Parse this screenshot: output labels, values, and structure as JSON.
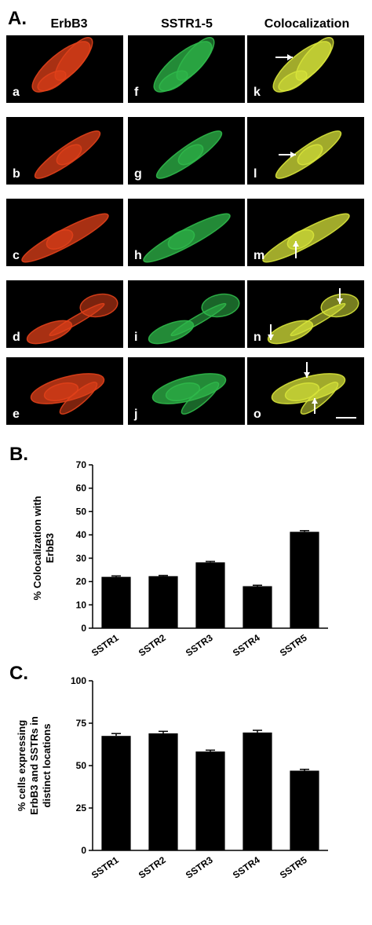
{
  "panel_labels": {
    "a": "A.",
    "b": "B.",
    "c": "C."
  },
  "columns": [
    "ErbB3",
    "SSTR1-5",
    "Colocalization"
  ],
  "micrographs": [
    [
      "a",
      "f",
      "k"
    ],
    [
      "b",
      "g",
      "l"
    ],
    [
      "c",
      "h",
      "m"
    ],
    [
      "d",
      "i",
      "n"
    ],
    [
      "e",
      "j",
      "o"
    ]
  ],
  "colors": {
    "red": "#e0401a",
    "green": "#2fb84a",
    "yellow": "#d7e33a",
    "bar": "#000000"
  },
  "chart_data": [
    {
      "type": "bar",
      "categories": [
        "SSTR1",
        "SSTR2",
        "SSTR3",
        "SSTR4",
        "SSTR5"
      ],
      "values": [
        22,
        22.3,
        28.2,
        18,
        41.3
      ],
      "errors": [
        0.4,
        0.3,
        0.4,
        0.4,
        0.5
      ],
      "ylabel_lines": [
        "% Colocalization with",
        "ErbB3"
      ],
      "ylim": [
        0,
        70
      ],
      "yticks": [
        0,
        10,
        20,
        30,
        40,
        50,
        60,
        70
      ]
    },
    {
      "type": "bar",
      "categories": [
        "SSTR1",
        "SSTR2",
        "SSTR3",
        "SSTR4",
        "SSTR5"
      ],
      "values": [
        67.5,
        69,
        58.3,
        69.5,
        47
      ],
      "errors": [
        1.4,
        1.2,
        0.8,
        1.3,
        0.8
      ],
      "ylabel_lines": [
        "% cells expressing",
        "ErbB3 and SSTRs in",
        "distinct locations"
      ],
      "ylim": [
        0,
        100
      ],
      "yticks": [
        0,
        25,
        50,
        75,
        100
      ]
    }
  ]
}
